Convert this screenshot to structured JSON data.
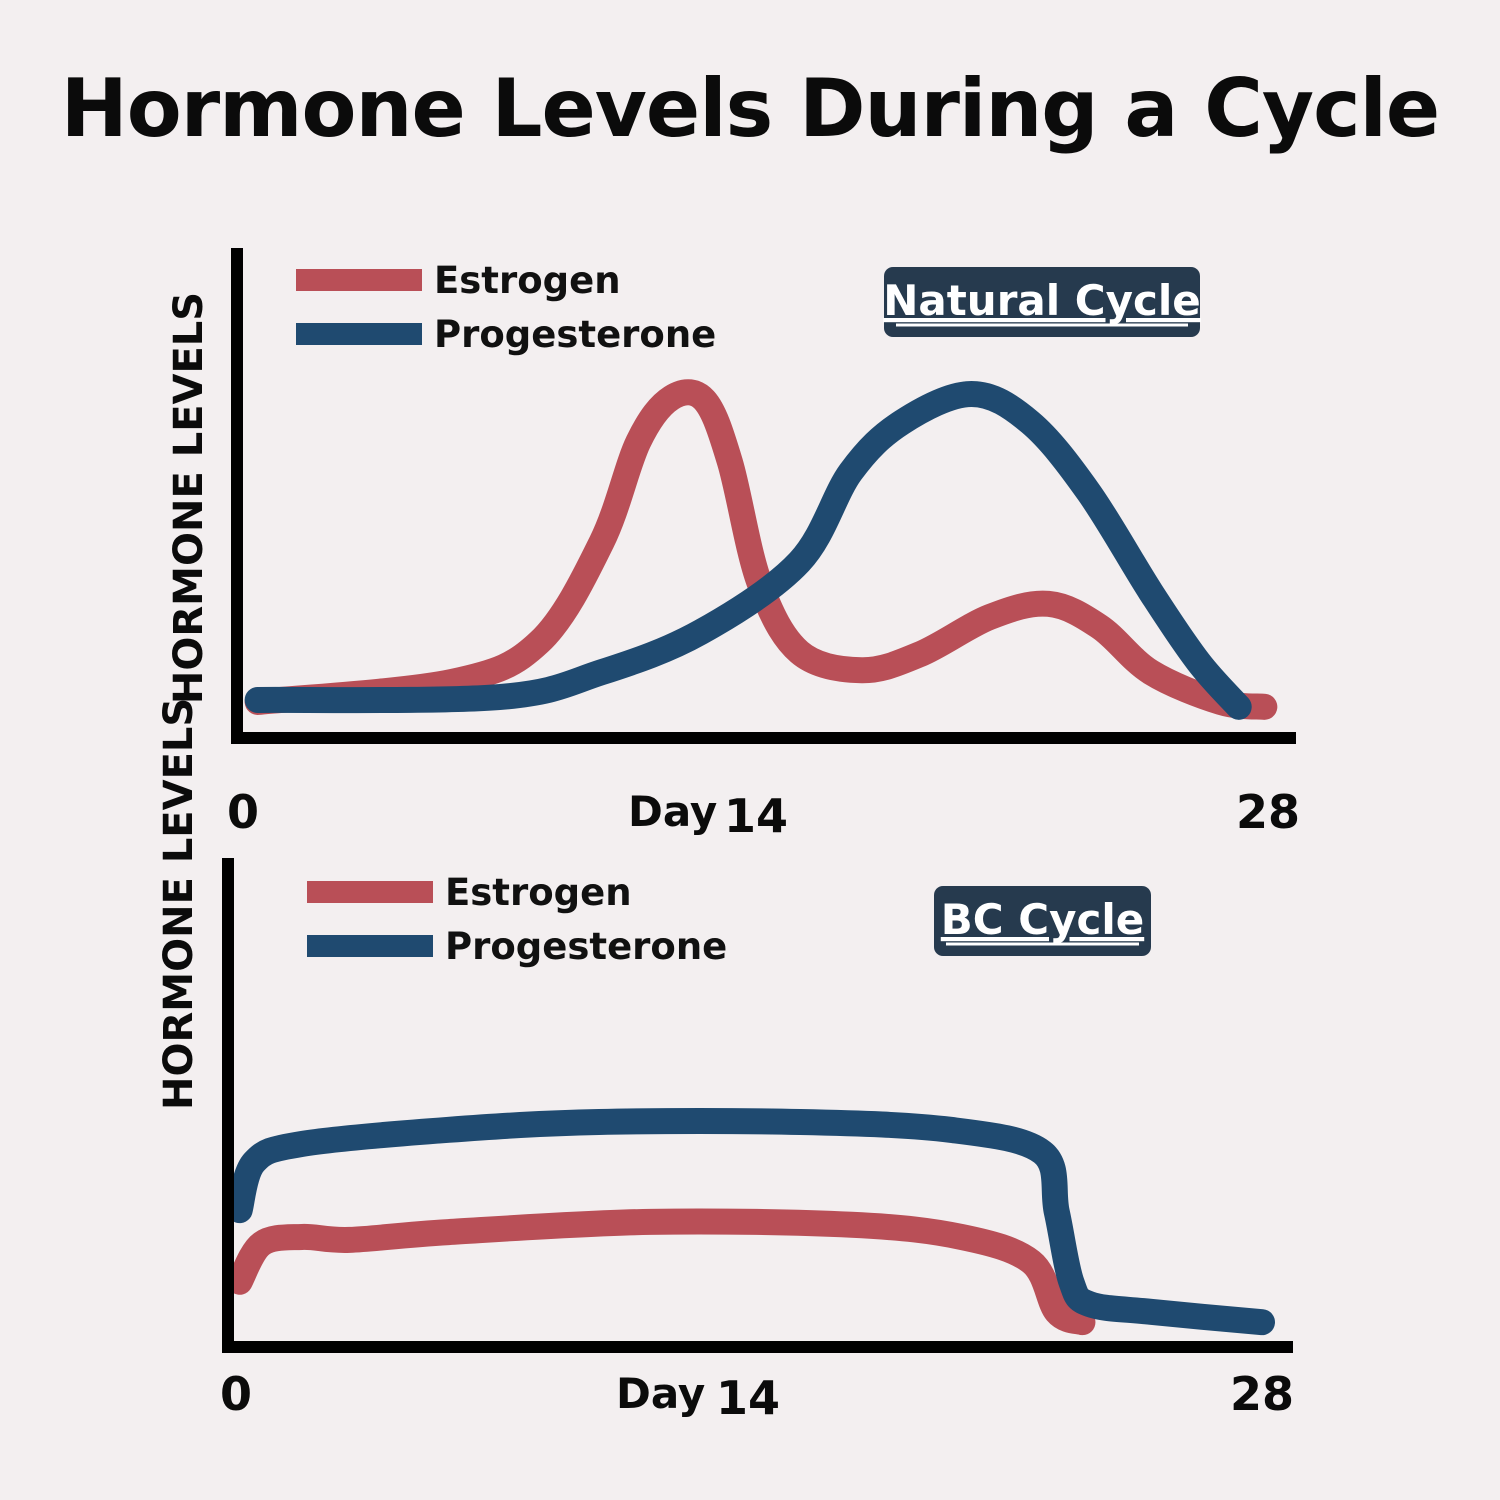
{
  "title": "Hormone Levels During a Cycle",
  "colors": {
    "estrogen": "#b94f57",
    "progesterone": "#1f4a70",
    "badge": "#263a4e",
    "axis": "#000000"
  },
  "chart_data": [
    {
      "type": "line",
      "badge": "Natural Cycle",
      "ylabel": "HORMONE LEVELS",
      "xlabel": "Day",
      "xticks": [
        "0",
        "14",
        "28"
      ],
      "xlim": [
        0,
        28
      ],
      "ylim": [
        0,
        100
      ],
      "legend_position": "top-left",
      "series": [
        {
          "name": "Estrogen",
          "x": [
            0.4,
            5.7,
            8.1,
            9.8,
            10.8,
            11.7,
            12.6,
            13.3,
            14.1,
            15.2,
            16.9,
            18.5,
            20.4,
            22.0,
            23.4,
            24.8,
            26.7,
            27.9
          ],
          "y": [
            3.7,
            7.8,
            16,
            36.5,
            57,
            66,
            65.6,
            52.9,
            28.3,
            13.9,
            10.2,
            13.5,
            21.1,
            23.8,
            19.1,
            9.8,
            3.7,
            2.7
          ]
        },
        {
          "name": "Progesterone",
          "x": [
            0.4,
            7.0,
            9.8,
            12.5,
            15.2,
            16.6,
            18.0,
            19.9,
            21.5,
            23.1,
            24.8,
            26.1,
            27.2
          ],
          "y": [
            4.1,
            4.7,
            9.8,
            18,
            32.4,
            50.8,
            61,
            66.8,
            61,
            46.7,
            26.2,
            11.9,
            2.7
          ]
        }
      ]
    },
    {
      "type": "line",
      "badge": "BC Cycle",
      "ylabel": "HORMONE LEVELS",
      "xlabel": "Day",
      "xticks": [
        "0",
        "14",
        "28"
      ],
      "xlim": [
        0,
        28
      ],
      "ylim": [
        0,
        100
      ],
      "legend_position": "top-left",
      "series": [
        {
          "name": "Estrogen",
          "x": [
            0.1,
            0.7,
            1.8,
            3.1,
            5.8,
            11.3,
            16.8,
            19.8,
            21.7,
            22.4,
            23.1
          ],
          "y": [
            9.7,
            17.5,
            18.9,
            18.3,
            19.9,
            22,
            21.4,
            18.9,
            13.8,
            3.5,
            1.4
          ]
        },
        {
          "name": "Progesterone",
          "x": [
            0.1,
            0.5,
            1.8,
            5.8,
            9.9,
            15.4,
            19.5,
            22.0,
            22.4,
            22.8,
            23.3,
            25.0,
            28.0
          ],
          "y": [
            24.4,
            34.3,
            38,
            40.9,
            42.5,
            42.5,
            40.9,
            36.3,
            24,
            9.6,
            5.1,
            3.5,
            1.4
          ]
        }
      ]
    }
  ]
}
